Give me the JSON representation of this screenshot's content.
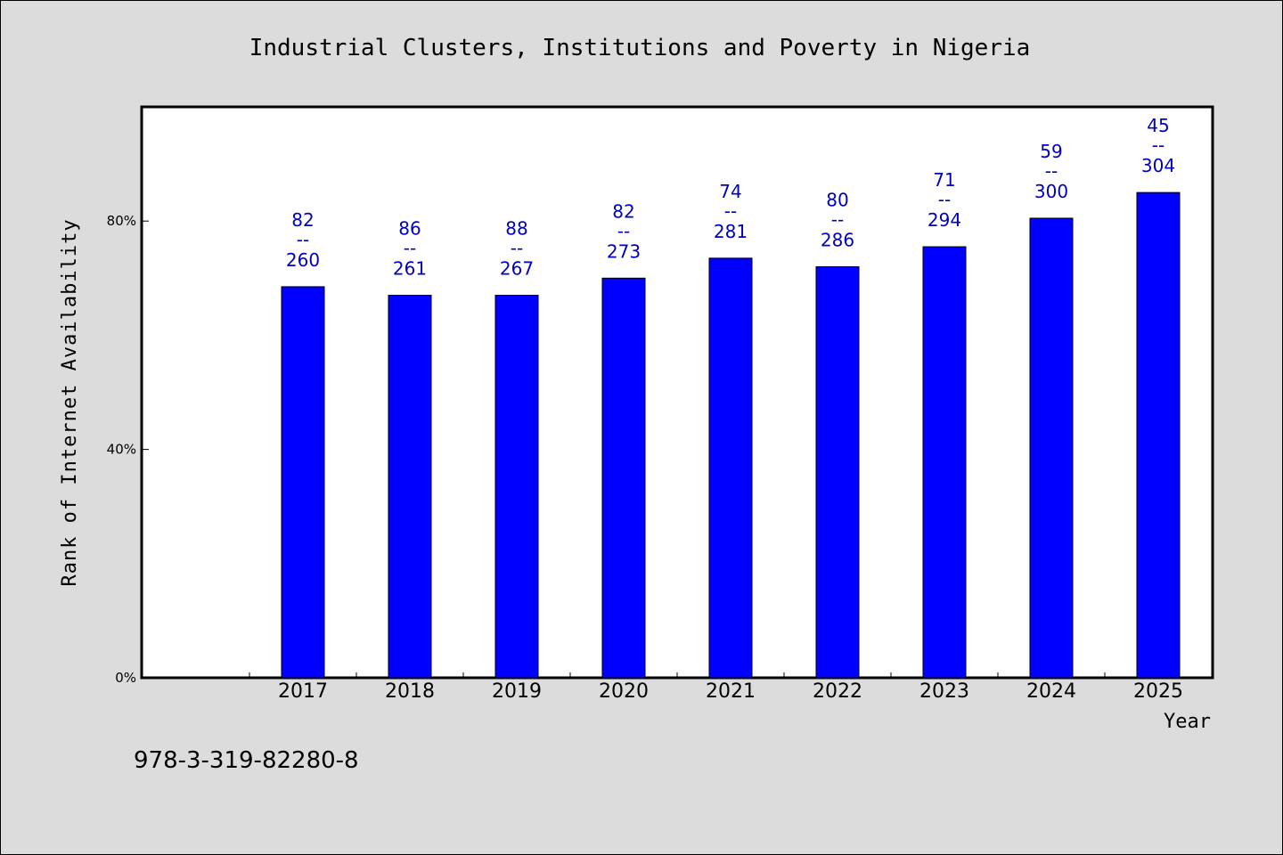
{
  "colors": {
    "bar": "#0000ff",
    "label": "#0000c0",
    "background": "#dcdcdc",
    "plot": "#ffffff"
  },
  "isbn": "978-3-319-82280-8",
  "chart_data": {
    "type": "bar",
    "title": "Industrial Clusters, Institutions and Poverty in Nigeria",
    "xlabel": "Year",
    "ylabel": "Rank of Internet Availability",
    "ylim": [
      0,
      100
    ],
    "yticks": [
      0,
      40,
      80
    ],
    "ytick_labels": [
      "0%",
      "40%",
      "80%"
    ],
    "grid": false,
    "categories": [
      "2017",
      "2018",
      "2019",
      "2020",
      "2021",
      "2022",
      "2023",
      "2024",
      "2025"
    ],
    "values": [
      68.5,
      67,
      67,
      70,
      73.5,
      72,
      75.5,
      80.5,
      85
    ],
    "data_labels": [
      {
        "top": "82",
        "sep": "--",
        "bottom": "260"
      },
      {
        "top": "86",
        "sep": "--",
        "bottom": "261"
      },
      {
        "top": "88",
        "sep": "--",
        "bottom": "267"
      },
      {
        "top": "82",
        "sep": "--",
        "bottom": "273"
      },
      {
        "top": "74",
        "sep": "--",
        "bottom": "281"
      },
      {
        "top": "80",
        "sep": "--",
        "bottom": "286"
      },
      {
        "top": "71",
        "sep": "--",
        "bottom": "294"
      },
      {
        "top": "59",
        "sep": "--",
        "bottom": "300"
      },
      {
        "top": "45",
        "sep": "--",
        "bottom": "304"
      }
    ]
  }
}
